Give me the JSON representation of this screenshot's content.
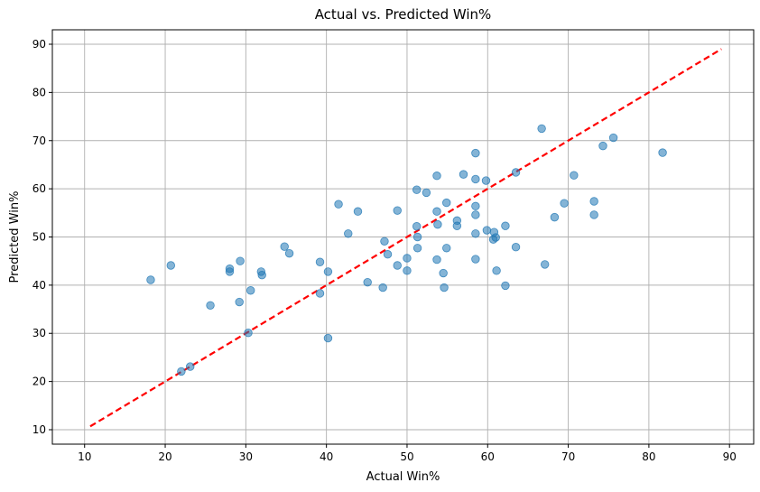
{
  "chart_data": {
    "type": "scatter",
    "title": "Actual vs. Predicted Win%",
    "xlabel": "Actual Win%",
    "ylabel": "Predicted Win%",
    "xlim": [
      6,
      93
    ],
    "ylim": [
      7,
      93
    ],
    "xticks": [
      10,
      20,
      30,
      40,
      50,
      60,
      70,
      80,
      90
    ],
    "yticks": [
      10,
      20,
      30,
      40,
      50,
      60,
      70,
      80,
      90
    ],
    "grid": true,
    "point_color": "#1f77b4",
    "point_alpha": 0.55,
    "reference_line": {
      "x": [
        10.7,
        89
      ],
      "y": [
        10.7,
        89
      ],
      "color": "#ff0000",
      "style": "dashed"
    },
    "points": [
      [
        18.2,
        41.1
      ],
      [
        20.7,
        44.1
      ],
      [
        22.0,
        22.1
      ],
      [
        23.1,
        23.1
      ],
      [
        25.6,
        35.8
      ],
      [
        28.0,
        43.4
      ],
      [
        28.0,
        42.8
      ],
      [
        29.3,
        45.0
      ],
      [
        29.2,
        36.5
      ],
      [
        30.3,
        30.1
      ],
      [
        30.6,
        38.9
      ],
      [
        31.9,
        42.8
      ],
      [
        32.0,
        42.1
      ],
      [
        34.8,
        48.0
      ],
      [
        35.4,
        46.6
      ],
      [
        39.2,
        44.8
      ],
      [
        39.2,
        38.3
      ],
      [
        40.2,
        42.8
      ],
      [
        40.2,
        29.0
      ],
      [
        41.5,
        56.8
      ],
      [
        42.7,
        50.7
      ],
      [
        43.9,
        55.3
      ],
      [
        45.1,
        40.6
      ],
      [
        47.0,
        39.5
      ],
      [
        47.2,
        49.1
      ],
      [
        47.6,
        46.4
      ],
      [
        48.8,
        55.5
      ],
      [
        48.8,
        44.1
      ],
      [
        50.0,
        45.6
      ],
      [
        50.0,
        43.0
      ],
      [
        51.2,
        59.8
      ],
      [
        51.2,
        52.2
      ],
      [
        51.3,
        50.0
      ],
      [
        51.3,
        47.7
      ],
      [
        52.4,
        59.2
      ],
      [
        53.7,
        62.7
      ],
      [
        53.7,
        55.3
      ],
      [
        53.8,
        52.6
      ],
      [
        53.7,
        45.3
      ],
      [
        54.5,
        42.5
      ],
      [
        54.6,
        39.5
      ],
      [
        54.9,
        57.1
      ],
      [
        54.9,
        47.7
      ],
      [
        56.2,
        53.4
      ],
      [
        56.2,
        52.3
      ],
      [
        57.0,
        63.0
      ],
      [
        58.5,
        67.4
      ],
      [
        58.5,
        62.0
      ],
      [
        58.5,
        56.4
      ],
      [
        58.5,
        54.6
      ],
      [
        58.5,
        50.7
      ],
      [
        58.5,
        45.4
      ],
      [
        59.8,
        61.7
      ],
      [
        59.9,
        51.4
      ],
      [
        60.8,
        51.0
      ],
      [
        60.7,
        49.5
      ],
      [
        61.0,
        49.9
      ],
      [
        61.1,
        43.0
      ],
      [
        62.2,
        52.3
      ],
      [
        62.2,
        39.9
      ],
      [
        63.5,
        63.4
      ],
      [
        63.5,
        47.9
      ],
      [
        66.7,
        72.5
      ],
      [
        67.1,
        44.3
      ],
      [
        68.3,
        54.1
      ],
      [
        69.5,
        57.0
      ],
      [
        70.7,
        62.8
      ],
      [
        73.2,
        57.4
      ],
      [
        73.2,
        54.6
      ],
      [
        74.3,
        68.9
      ],
      [
        75.6,
        70.6
      ],
      [
        81.7,
        67.5
      ]
    ]
  }
}
